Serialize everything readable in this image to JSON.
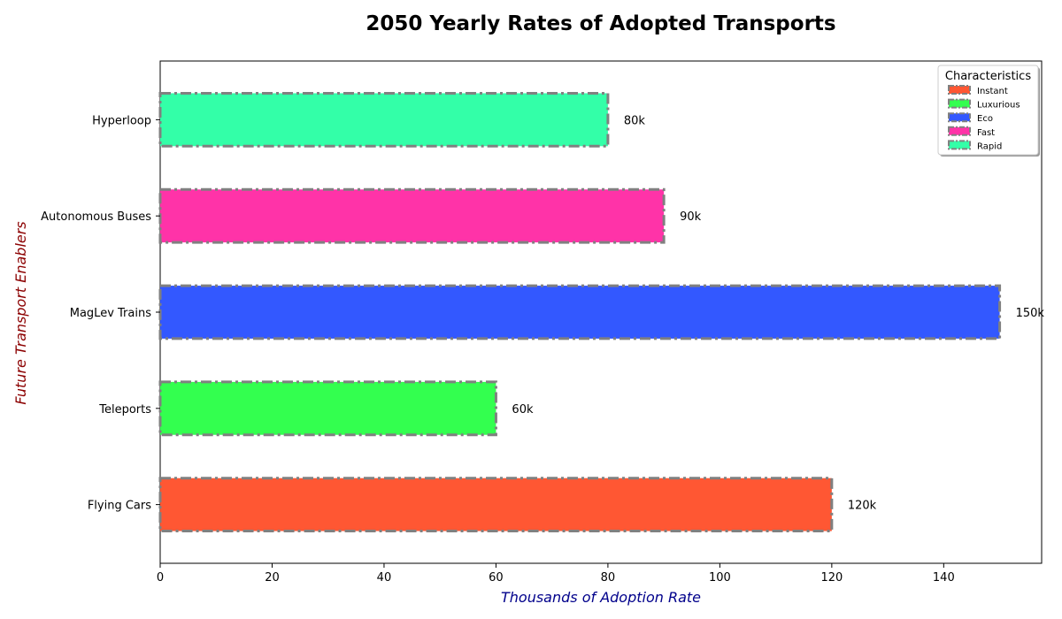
{
  "chart_data": {
    "type": "bar",
    "orientation": "horizontal",
    "title": "2050 Yearly Rates of Adopted Transports",
    "xlabel": "Thousands of Adoption Rate",
    "ylabel": "Future Transport Enablers",
    "xlim": [
      0,
      157.5
    ],
    "xticks": [
      0,
      20,
      40,
      60,
      80,
      100,
      120,
      140
    ],
    "categories": [
      "Flying Cars",
      "Teleports",
      "MagLev Trains",
      "Autonomous Buses",
      "Hyperloop"
    ],
    "values": [
      120,
      60,
      150,
      90,
      80
    ],
    "value_labels": [
      "120k",
      "60k",
      "150k",
      "90k",
      "80k"
    ],
    "colors": [
      "#ff5733",
      "#33ff4f",
      "#3358ff",
      "#ff33a8",
      "#33ffa8"
    ],
    "edge_color": "#808080",
    "xlabel_color": "#00008b",
    "ylabel_color": "#8b0000",
    "grid": false,
    "legend": {
      "title": "Characteristics",
      "placement": "top-right",
      "entries": [
        "Instant",
        "Luxurious",
        "Eco",
        "Fast",
        "Rapid"
      ]
    }
  }
}
